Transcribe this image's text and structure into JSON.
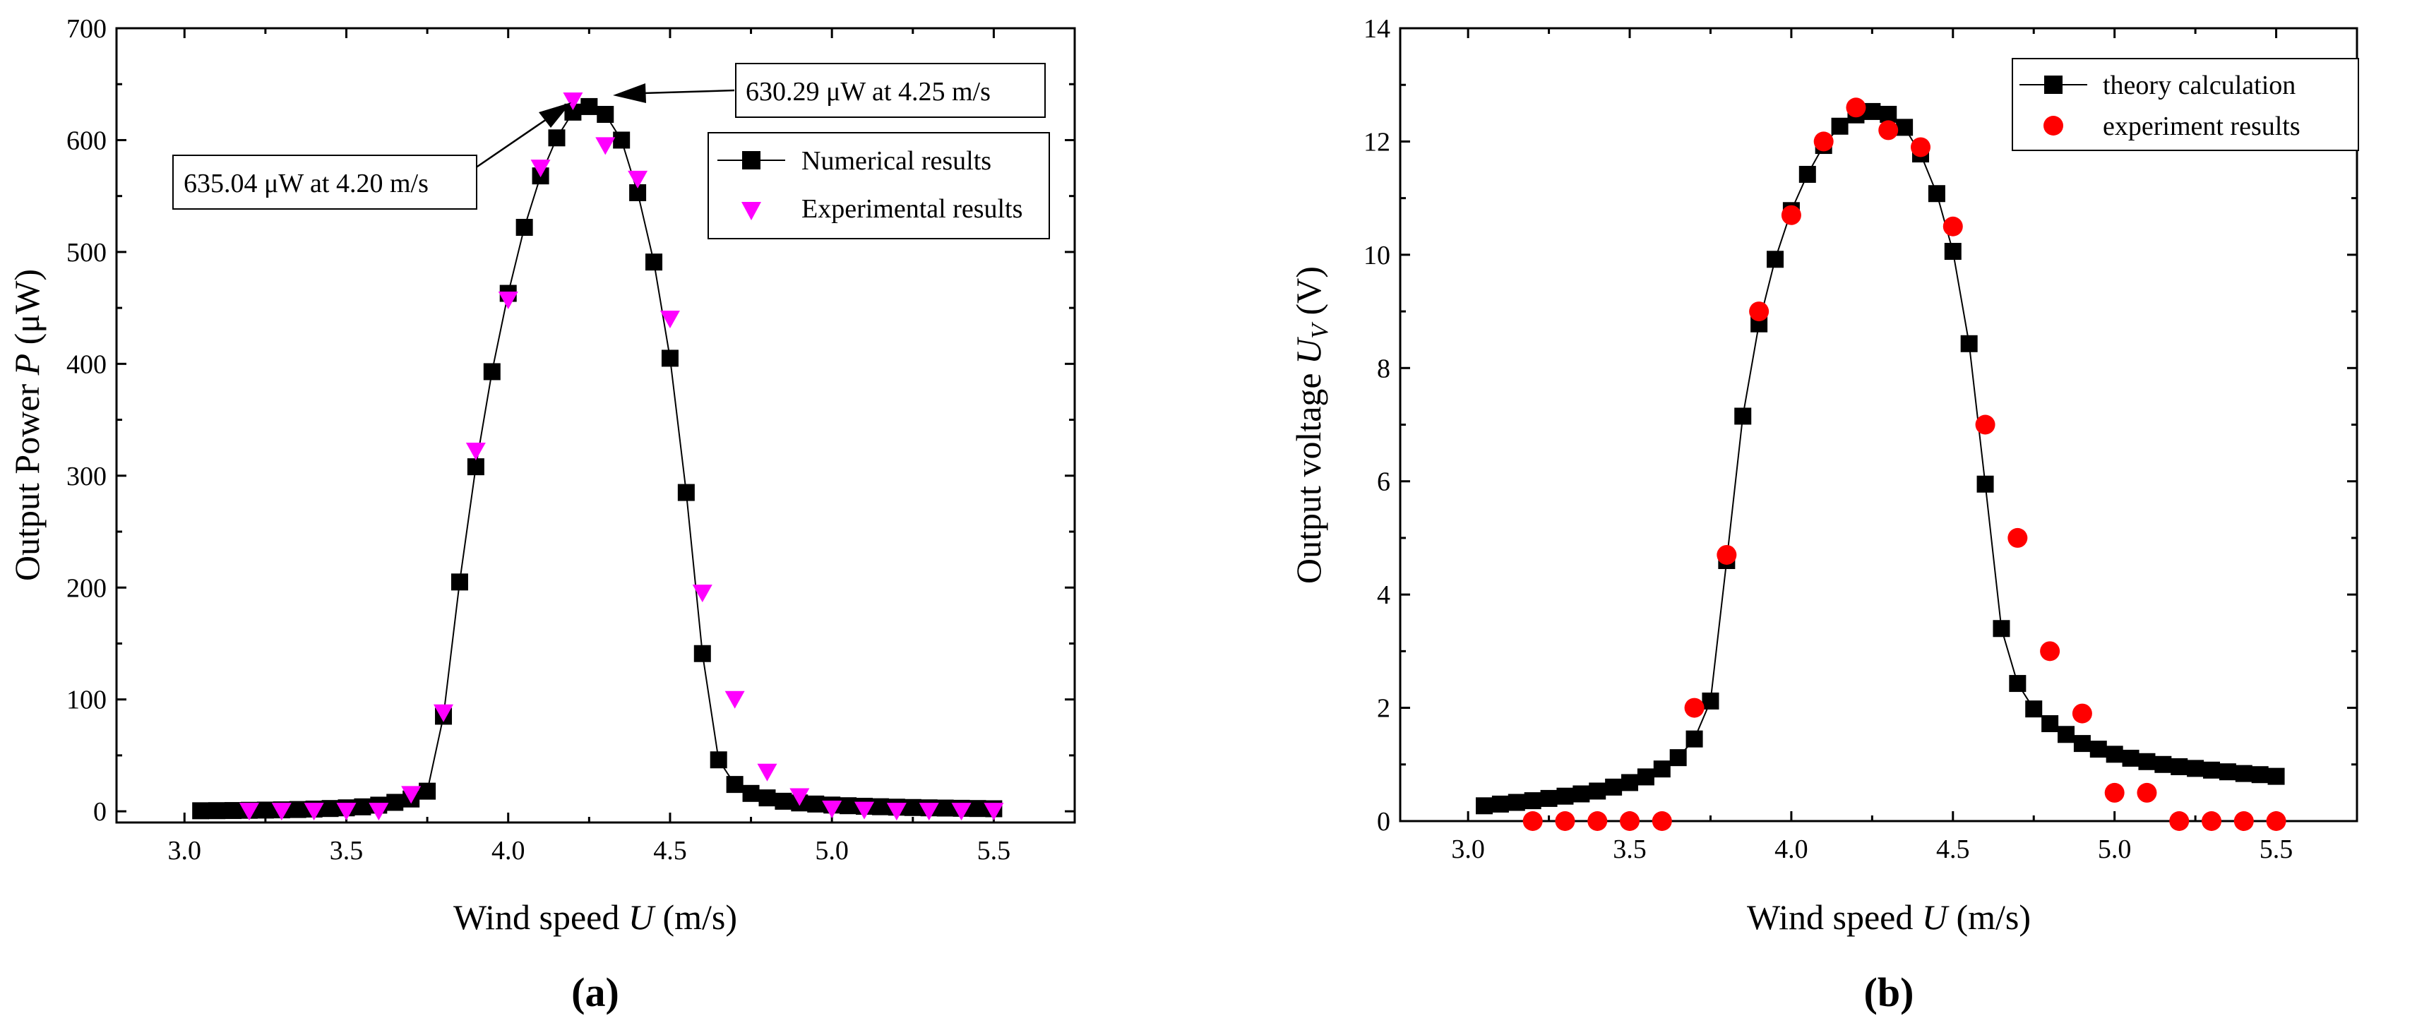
{
  "chart_data": [
    {
      "type": "line",
      "panel_label": "(a)",
      "xlabel_text": "Wind speed ",
      "xlabel_var": "U",
      "xlabel_unit": " (m/s)",
      "ylabel_text": "Output Power ",
      "ylabel_var": "P",
      "ylabel_unit": " (μW)",
      "xlim": [
        2.79,
        5.75
      ],
      "ylim": [
        -10,
        700
      ],
      "xticks": [
        3.0,
        3.5,
        4.0,
        4.5,
        5.0,
        5.5
      ],
      "yticks": [
        0,
        100,
        200,
        300,
        400,
        500,
        600,
        700
      ],
      "legend": {
        "position": "upper-right",
        "entries": [
          "Numerical results",
          "Experimental results"
        ]
      },
      "annotations": [
        "635.04 μW at 4.20 m/s",
        "630.29 μW at 4.25 m/s"
      ],
      "series": [
        {
          "name": "Numerical results",
          "marker": "square",
          "color": "#000000",
          "x": [
            3.05,
            3.1,
            3.15,
            3.2,
            3.25,
            3.3,
            3.35,
            3.4,
            3.45,
            3.5,
            3.55,
            3.6,
            3.65,
            3.7,
            3.75,
            3.8,
            3.85,
            3.9,
            3.95,
            4.0,
            4.05,
            4.1,
            4.15,
            4.2,
            4.25,
            4.3,
            4.35,
            4.4,
            4.45,
            4.5,
            4.55,
            4.6,
            4.65,
            4.7,
            4.75,
            4.8,
            4.85,
            4.9,
            4.95,
            5.0,
            5.05,
            5.1,
            5.15,
            5.2,
            5.25,
            5.3,
            5.35,
            5.4,
            5.45,
            5.5
          ],
          "y": [
            0.5,
            0.6,
            0.7,
            0.9,
            1.1,
            1.3,
            1.6,
            2,
            2.5,
            3.1,
            4,
            5.5,
            8,
            11,
            18,
            85,
            205,
            308,
            393,
            463,
            522,
            568,
            602,
            625,
            630,
            623,
            600,
            553,
            491,
            405,
            285,
            141,
            46,
            24,
            16,
            12,
            9,
            7.5,
            6.5,
            5.6,
            5,
            4.5,
            4.1,
            3.7,
            3.4,
            3.1,
            2.9,
            2.7,
            2.5,
            2.3
          ]
        },
        {
          "name": "Experimental results",
          "marker": "triangle-down",
          "color": "#ff00ff",
          "x": [
            3.2,
            3.3,
            3.4,
            3.5,
            3.6,
            3.7,
            3.8,
            3.9,
            4.0,
            4.1,
            4.2,
            4.3,
            4.4,
            4.5,
            4.6,
            4.7,
            4.8,
            4.9,
            5.0,
            5.1,
            5.2,
            5.3,
            5.4,
            5.5
          ],
          "y": [
            0,
            0,
            0,
            0,
            0,
            15,
            88,
            322,
            457,
            575,
            635,
            595,
            565,
            440,
            195,
            100,
            35,
            13,
            2,
            1,
            0,
            0,
            0,
            0
          ]
        }
      ]
    },
    {
      "type": "line",
      "panel_label": "(b)",
      "xlabel_text": "Wind speed ",
      "xlabel_var": "U",
      "xlabel_unit": " (m/s)",
      "ylabel_text": "Output voltage ",
      "ylabel_var": "U",
      "ylabel_sub": "V",
      "ylabel_unit": " (V)",
      "xlim": [
        2.79,
        5.75
      ],
      "ylim": [
        0,
        14
      ],
      "xticks": [
        3.0,
        3.5,
        4.0,
        4.5,
        5.0,
        5.5
      ],
      "yticks": [
        0,
        2,
        4,
        6,
        8,
        10,
        12,
        14
      ],
      "legend": {
        "position": "upper-right",
        "entries": [
          "theory calculation",
          "experiment results"
        ]
      },
      "series": [
        {
          "name": "theory calculation",
          "marker": "square",
          "color": "#000000",
          "x": [
            3.05,
            3.1,
            3.15,
            3.2,
            3.25,
            3.3,
            3.35,
            3.4,
            3.45,
            3.5,
            3.55,
            3.6,
            3.65,
            3.7,
            3.75,
            3.8,
            3.85,
            3.9,
            3.95,
            4.0,
            4.05,
            4.1,
            4.15,
            4.2,
            4.25,
            4.3,
            4.35,
            4.4,
            4.45,
            4.5,
            4.55,
            4.6,
            4.65,
            4.7,
            4.75,
            4.8,
            4.85,
            4.9,
            4.95,
            5.0,
            5.05,
            5.1,
            5.15,
            5.2,
            5.25,
            5.3,
            5.35,
            5.4,
            5.45,
            5.5
          ],
          "y": [
            0.27,
            0.3,
            0.33,
            0.36,
            0.4,
            0.44,
            0.48,
            0.53,
            0.6,
            0.68,
            0.78,
            0.92,
            1.12,
            1.45,
            2.12,
            4.6,
            7.15,
            8.78,
            9.92,
            10.78,
            11.42,
            11.93,
            12.27,
            12.47,
            12.53,
            12.48,
            12.25,
            11.78,
            11.08,
            10.06,
            8.43,
            5.95,
            3.4,
            2.43,
            1.98,
            1.72,
            1.53,
            1.37,
            1.27,
            1.18,
            1.11,
            1.05,
            1.0,
            0.96,
            0.93,
            0.9,
            0.87,
            0.84,
            0.82,
            0.79
          ]
        },
        {
          "name": "experiment results",
          "marker": "circle",
          "color": "#ff0000",
          "x": [
            3.2,
            3.3,
            3.4,
            3.5,
            3.6,
            3.7,
            3.8,
            3.9,
            4.0,
            4.1,
            4.2,
            4.3,
            4.4,
            4.5,
            4.6,
            4.7,
            4.8,
            4.9,
            5.0,
            5.1,
            5.2,
            5.3,
            5.4,
            5.5
          ],
          "y": [
            0,
            0,
            0,
            0,
            0,
            2,
            4.7,
            9,
            10.7,
            12,
            12.6,
            12.2,
            11.9,
            10.5,
            7,
            5,
            3,
            1.9,
            0.5,
            0.5,
            0,
            0,
            0,
            0
          ]
        }
      ]
    }
  ]
}
